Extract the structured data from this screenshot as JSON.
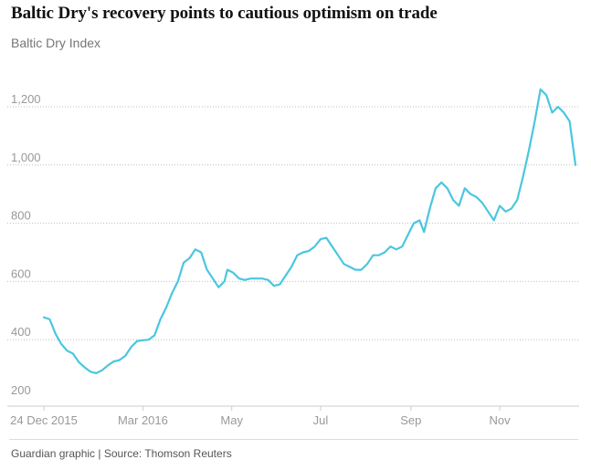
{
  "header": {
    "title": "Baltic Dry's recovery points to cautious optimism on trade",
    "subtitle": "Baltic Dry Index"
  },
  "footer": {
    "source": "Guardian graphic | Source: Thomson Reuters"
  },
  "colors": {
    "line": "#4bc6df",
    "grid": "#bdbdbd",
    "axis": "#cccccc",
    "tick_text": "#999999"
  },
  "chart_data": {
    "type": "line",
    "title": "Baltic Dry's recovery points to cautious optimism on trade",
    "ylabel": "Baltic Dry Index",
    "xlabel": "",
    "ylim": [
      200,
      1300
    ],
    "xlim": [
      "2015-12-24",
      "2016-12-23"
    ],
    "grid": true,
    "y_ticks": [
      {
        "value": 200,
        "label": "200"
      },
      {
        "value": 400,
        "label": "400"
      },
      {
        "value": 600,
        "label": "600"
      },
      {
        "value": 800,
        "label": "800"
      },
      {
        "value": 1000,
        "label": "1,000"
      },
      {
        "value": 1200,
        "label": "1,200"
      }
    ],
    "x_ticks": [
      {
        "date": "2015-12-24",
        "label": "24 Dec 2015"
      },
      {
        "date": "2016-03-01",
        "label": "Mar 2016"
      },
      {
        "date": "2016-05-01",
        "label": "May"
      },
      {
        "date": "2016-07-01",
        "label": "Jul"
      },
      {
        "date": "2016-09-01",
        "label": "Sep"
      },
      {
        "date": "2016-11-01",
        "label": "Nov"
      }
    ],
    "series": [
      {
        "x": [
          "2015-12-24",
          "2015-12-28",
          "2016-01-01",
          "2016-01-05",
          "2016-01-09",
          "2016-01-13",
          "2016-01-17",
          "2016-01-21",
          "2016-01-25",
          "2016-01-29",
          "2016-02-02",
          "2016-02-06",
          "2016-02-10",
          "2016-02-14",
          "2016-02-18",
          "2016-02-22",
          "2016-02-26",
          "2016-03-01",
          "2016-03-05",
          "2016-03-09",
          "2016-03-13",
          "2016-03-17",
          "2016-03-21",
          "2016-03-25",
          "2016-03-29",
          "2016-04-02",
          "2016-04-06",
          "2016-04-10",
          "2016-04-14",
          "2016-04-18",
          "2016-04-22",
          "2016-04-26",
          "2016-04-28",
          "2016-05-02",
          "2016-05-06",
          "2016-05-10",
          "2016-05-14",
          "2016-05-18",
          "2016-05-22",
          "2016-05-26",
          "2016-05-30",
          "2016-06-03",
          "2016-06-07",
          "2016-06-11",
          "2016-06-15",
          "2016-06-19",
          "2016-06-23",
          "2016-06-27",
          "2016-07-01",
          "2016-07-05",
          "2016-07-09",
          "2016-07-13",
          "2016-07-17",
          "2016-07-21",
          "2016-07-25",
          "2016-07-29",
          "2016-08-02",
          "2016-08-06",
          "2016-08-10",
          "2016-08-14",
          "2016-08-18",
          "2016-08-22",
          "2016-08-26",
          "2016-08-30",
          "2016-09-03",
          "2016-09-07",
          "2016-09-10",
          "2016-09-14",
          "2016-09-18",
          "2016-09-22",
          "2016-09-26",
          "2016-09-30",
          "2016-10-04",
          "2016-10-08",
          "2016-10-12",
          "2016-10-16",
          "2016-10-20",
          "2016-10-24",
          "2016-10-28",
          "2016-11-01",
          "2016-11-05",
          "2016-11-09",
          "2016-11-13",
          "2016-11-17",
          "2016-11-21",
          "2016-11-25",
          "2016-11-29",
          "2016-12-03",
          "2016-12-07",
          "2016-12-11",
          "2016-12-15",
          "2016-12-19",
          "2016-12-23"
        ],
        "y": [
          477,
          470,
          420,
          385,
          362,
          352,
          323,
          305,
          290,
          285,
          295,
          312,
          325,
          330,
          345,
          375,
          395,
          398,
          400,
          415,
          470,
          510,
          560,
          600,
          665,
          680,
          710,
          700,
          640,
          610,
          580,
          600,
          640,
          630,
          610,
          605,
          610,
          610,
          610,
          605,
          585,
          590,
          620,
          650,
          690,
          700,
          705,
          720,
          745,
          750,
          720,
          690,
          660,
          650,
          640,
          640,
          660,
          690,
          690,
          700,
          720,
          710,
          720,
          760,
          800,
          810,
          770,
          850,
          920,
          940,
          920,
          880,
          860,
          920,
          900,
          890,
          870,
          840,
          810,
          860,
          840,
          850,
          880,
          960,
          1050,
          1150,
          1260,
          1240,
          1180,
          1200,
          1180,
          1150,
          1000
        ]
      }
    ]
  }
}
